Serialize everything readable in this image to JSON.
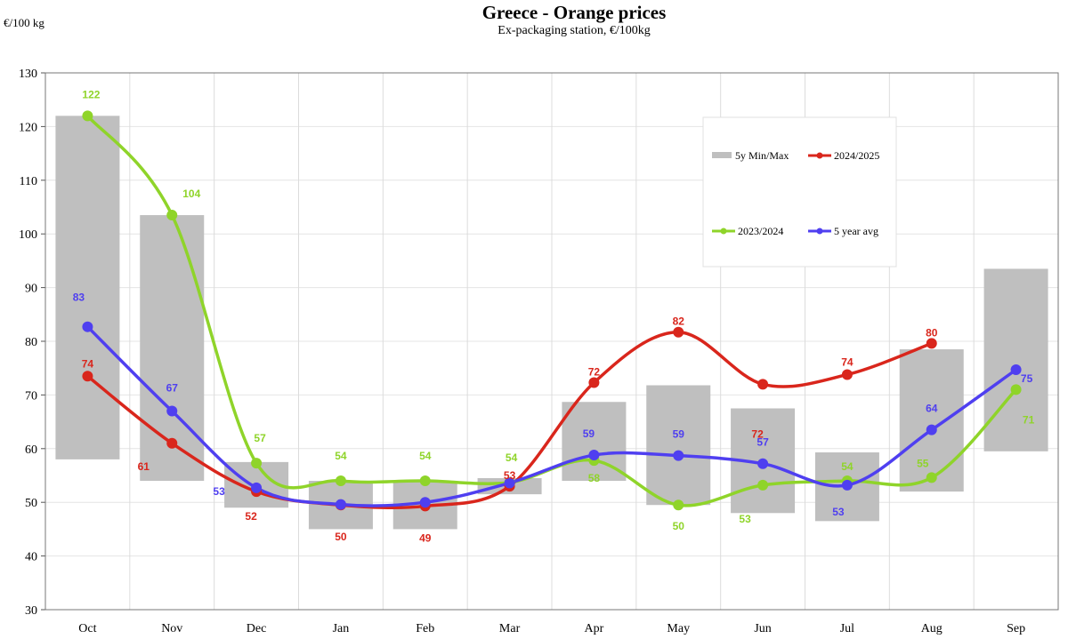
{
  "chart_data": {
    "type": "line",
    "title": "Greece - Orange prices",
    "subtitle": "Ex-packaging station, €/100kg",
    "ylabel": "€/100 kg",
    "xlabel": "",
    "ylim": [
      30,
      130
    ],
    "yticks": [
      30,
      40,
      50,
      60,
      70,
      80,
      90,
      100,
      110,
      120,
      130
    ],
    "grid": true,
    "legend_placement": "top-right",
    "categories": [
      "Oct",
      "Nov",
      "Dec",
      "Jan",
      "Feb",
      "Mar",
      "Apr",
      "May",
      "Jun",
      "Jul",
      "Aug",
      "Sep"
    ],
    "range": {
      "name": "5y Min/Max",
      "color": "#bfbfbf",
      "min": [
        58,
        54,
        49,
        45,
        45,
        51.5,
        54,
        49.5,
        48,
        46.5,
        52,
        59.5
      ],
      "max": [
        122,
        103.5,
        57.5,
        54,
        54,
        54.5,
        68.7,
        71.8,
        67.5,
        59.3,
        78.5,
        93.5
      ]
    },
    "series": [
      {
        "name": "2024/2025",
        "color": "#d9261c",
        "values": [
          73.5,
          61,
          52,
          49.5,
          49.3,
          53,
          72.3,
          81.7,
          72,
          73.8,
          79.6,
          null
        ],
        "labels": [
          "74",
          "61",
          "52",
          "50",
          "49",
          "53",
          "72",
          "82",
          "72",
          "74",
          "80",
          ""
        ]
      },
      {
        "name": "2023/2024",
        "color": "#8fd42a",
        "values": [
          122,
          103.5,
          57.3,
          54,
          54,
          53.7,
          57.8,
          49.5,
          53.2,
          54,
          54.6,
          71
        ],
        "labels": [
          "122",
          "104",
          "57",
          "54",
          "54",
          "54",
          "58",
          "50",
          "53",
          "54",
          "55",
          "71"
        ]
      },
      {
        "name": "5 year avg",
        "color": "#4f3ff0",
        "values": [
          82.7,
          67,
          52.7,
          49.6,
          50,
          53.6,
          58.8,
          58.7,
          57.2,
          53.2,
          63.5,
          74.7
        ],
        "labels": [
          "83",
          "67",
          "53",
          "",
          "",
          "",
          "59",
          "59",
          "57",
          "53",
          "64",
          "75"
        ]
      }
    ]
  }
}
